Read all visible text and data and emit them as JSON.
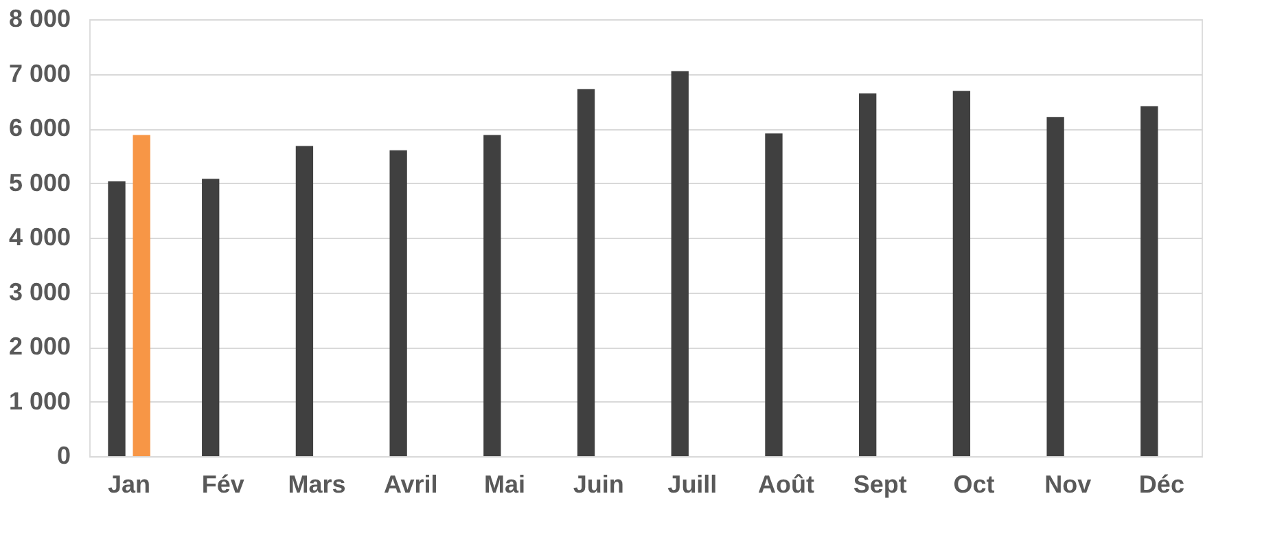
{
  "chart_data": {
    "type": "bar",
    "categories": [
      "Jan",
      "Fév",
      "Mars",
      "Avril",
      "Mai",
      "Juin",
      "Juill",
      "Août",
      "Sept",
      "Oct",
      "Nov",
      "Déc"
    ],
    "series": [
      {
        "color": "#404040",
        "values": [
          5030,
          5080,
          5680,
          5600,
          5880,
          6720,
          7050,
          5910,
          6640,
          6690,
          6210,
          6410
        ]
      },
      {
        "color": "#f79646",
        "values": [
          5880,
          null,
          null,
          null,
          null,
          null,
          null,
          null,
          null,
          null,
          null,
          null
        ]
      }
    ],
    "ylim": [
      0,
      8000
    ],
    "yticks": [
      {
        "value": 0,
        "label": "0"
      },
      {
        "value": 1000,
        "label": "1 000"
      },
      {
        "value": 2000,
        "label": "2 000"
      },
      {
        "value": 3000,
        "label": "3 000"
      },
      {
        "value": 4000,
        "label": "4 000"
      },
      {
        "value": 5000,
        "label": "5 000"
      },
      {
        "value": 6000,
        "label": "6 000"
      },
      {
        "value": 7000,
        "label": "7 000"
      },
      {
        "value": 8000,
        "label": "8 000"
      }
    ],
    "grid": "y",
    "legend": false
  }
}
